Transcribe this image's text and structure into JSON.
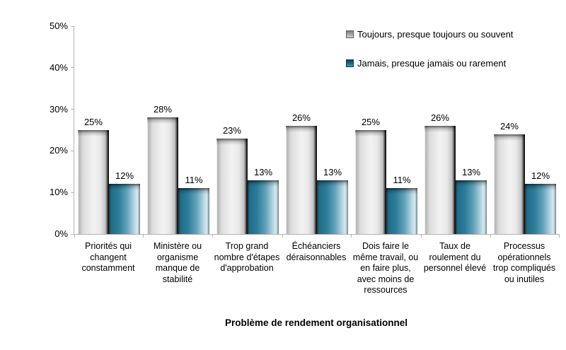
{
  "chart_data": {
    "type": "bar",
    "title": "",
    "xlabel": "Problème de rendement organisationnel",
    "ylabel": "",
    "ylim": [
      0,
      50
    ],
    "yticks": [
      "0%",
      "10%",
      "20%",
      "30%",
      "40%",
      "50%"
    ],
    "grid": false,
    "legend_position": "top-right",
    "value_suffix": "%",
    "categories": [
      "Priorités qui changent constamment",
      "Ministère ou organisme manque de stabilité",
      "Trop grand nombre d'étapes d'approbation",
      "Échéanciers déraisonnables",
      "Dois faire le même travail, ou en faire plus, avec moins de ressources",
      "Taux de roulement du personnel élevé",
      "Processus opérationnels trop compliqués ou inutiles"
    ],
    "series": [
      {
        "name": "Toujours, presque toujours ou souvent",
        "color": "#d9d9d9",
        "values": [
          25,
          28,
          23,
          26,
          25,
          26,
          24
        ],
        "labels": [
          "25%",
          "28%",
          "23%",
          "26%",
          "25%",
          "26%",
          "24%"
        ]
      },
      {
        "name": "Jamais, presque jamais ou rarement",
        "color": "#2b7c99",
        "values": [
          12,
          11,
          13,
          13,
          11,
          13,
          12
        ],
        "labels": [
          "12%",
          "11%",
          "13%",
          "13%",
          "11%",
          "13%",
          "12%"
        ]
      }
    ],
    "axis_color": "#b3b3b3"
  }
}
